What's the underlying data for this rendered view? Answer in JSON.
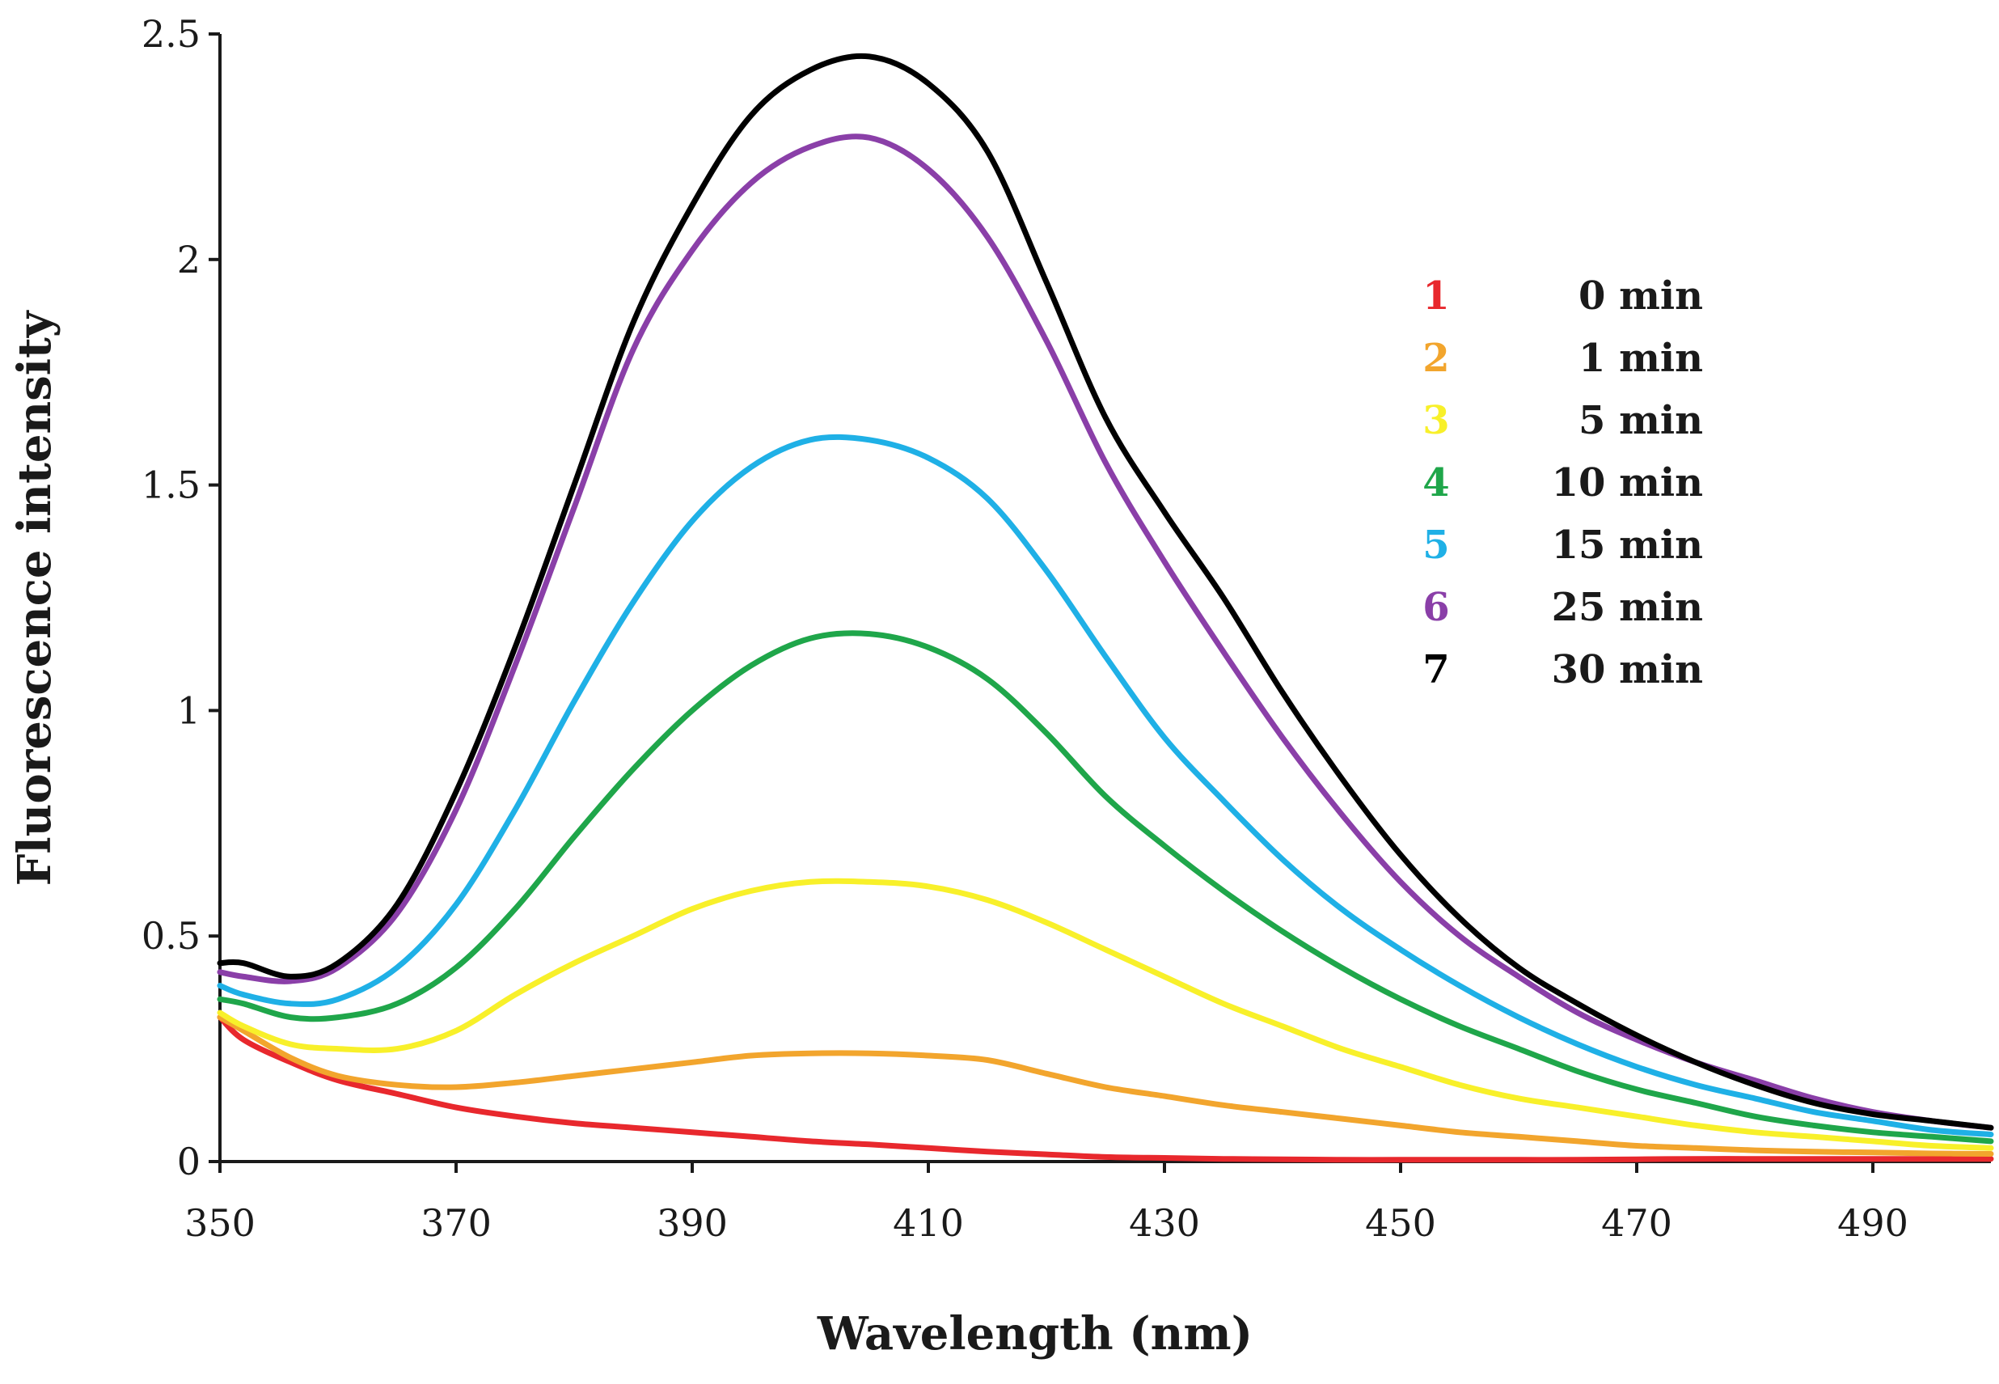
{
  "chart_data": {
    "type": "line",
    "title": "",
    "xlabel": "Wavelength (nm)",
    "ylabel": "Fluorescence intensity",
    "xlim": [
      350,
      500
    ],
    "ylim": [
      0,
      2.5
    ],
    "x_ticks": [
      350,
      370,
      390,
      410,
      430,
      450,
      470,
      490
    ],
    "x_tick_labels": [
      "350",
      "370",
      "390",
      "410",
      "430",
      "450",
      "470",
      "490"
    ],
    "y_ticks": [
      0,
      0.5,
      1,
      1.5,
      2,
      2.5
    ],
    "y_tick_labels": [
      "0",
      "0.5",
      "1",
      "1.5",
      "2",
      "2.5"
    ],
    "grid": false,
    "legend_position": "top-right",
    "x": [
      350,
      352,
      356,
      360,
      365,
      370,
      375,
      380,
      385,
      390,
      395,
      400,
      405,
      410,
      415,
      420,
      425,
      430,
      435,
      440,
      445,
      450,
      455,
      460,
      465,
      470,
      475,
      480,
      485,
      490,
      495,
      500
    ],
    "series": [
      {
        "number": "1",
        "name": "0 min",
        "color": "#e8282d",
        "values": [
          0.32,
          0.27,
          0.22,
          0.18,
          0.15,
          0.12,
          0.1,
          0.085,
          0.075,
          0.065,
          0.055,
          0.045,
          0.038,
          0.03,
          0.022,
          0.016,
          0.01,
          0.008,
          0.006,
          0.005,
          0.004,
          0.004,
          0.004,
          0.004,
          0.004,
          0.005,
          0.006,
          0.006,
          0.006,
          0.006,
          0.006,
          0.006
        ]
      },
      {
        "number": "2",
        "name": "1 min",
        "color": "#f2a52d",
        "values": [
          0.32,
          0.29,
          0.23,
          0.19,
          0.17,
          0.165,
          0.175,
          0.19,
          0.205,
          0.22,
          0.235,
          0.24,
          0.24,
          0.235,
          0.225,
          0.195,
          0.165,
          0.145,
          0.125,
          0.11,
          0.095,
          0.08,
          0.065,
          0.055,
          0.045,
          0.035,
          0.03,
          0.025,
          0.022,
          0.02,
          0.018,
          0.017
        ]
      },
      {
        "number": "3",
        "name": "5 min",
        "color": "#f8f02a",
        "values": [
          0.33,
          0.3,
          0.26,
          0.25,
          0.25,
          0.29,
          0.37,
          0.44,
          0.5,
          0.56,
          0.6,
          0.62,
          0.62,
          0.61,
          0.58,
          0.53,
          0.47,
          0.41,
          0.35,
          0.3,
          0.25,
          0.21,
          0.17,
          0.14,
          0.12,
          0.1,
          0.08,
          0.065,
          0.055,
          0.045,
          0.035,
          0.03
        ]
      },
      {
        "number": "4",
        "name": "10 min",
        "color": "#1fa64a",
        "values": [
          0.36,
          0.35,
          0.32,
          0.32,
          0.35,
          0.43,
          0.56,
          0.72,
          0.87,
          1.0,
          1.1,
          1.16,
          1.17,
          1.14,
          1.07,
          0.95,
          0.81,
          0.7,
          0.6,
          0.51,
          0.43,
          0.36,
          0.3,
          0.25,
          0.2,
          0.16,
          0.13,
          0.1,
          0.08,
          0.065,
          0.055,
          0.045
        ]
      },
      {
        "number": "5",
        "name": "15 min",
        "color": "#1fb0e6",
        "values": [
          0.39,
          0.37,
          0.35,
          0.36,
          0.43,
          0.57,
          0.78,
          1.02,
          1.24,
          1.42,
          1.54,
          1.6,
          1.6,
          1.56,
          1.47,
          1.31,
          1.12,
          0.94,
          0.8,
          0.67,
          0.56,
          0.47,
          0.39,
          0.32,
          0.26,
          0.21,
          0.17,
          0.14,
          0.11,
          0.09,
          0.07,
          0.06
        ]
      },
      {
        "number": "6",
        "name": "25 min",
        "color": "#8a3fa8",
        "values": [
          0.42,
          0.41,
          0.4,
          0.43,
          0.55,
          0.78,
          1.1,
          1.45,
          1.8,
          2.02,
          2.17,
          2.25,
          2.27,
          2.2,
          2.05,
          1.82,
          1.55,
          1.33,
          1.13,
          0.94,
          0.77,
          0.62,
          0.5,
          0.41,
          0.33,
          0.27,
          0.22,
          0.18,
          0.14,
          0.11,
          0.09,
          0.075
        ]
      },
      {
        "number": "7",
        "name": "30 min",
        "color": "#000000",
        "values": [
          0.44,
          0.44,
          0.41,
          0.44,
          0.57,
          0.82,
          1.14,
          1.5,
          1.86,
          2.12,
          2.32,
          2.42,
          2.45,
          2.39,
          2.24,
          1.95,
          1.65,
          1.44,
          1.25,
          1.04,
          0.85,
          0.68,
          0.54,
          0.43,
          0.35,
          0.28,
          0.22,
          0.17,
          0.13,
          0.105,
          0.09,
          0.075
        ]
      }
    ]
  }
}
